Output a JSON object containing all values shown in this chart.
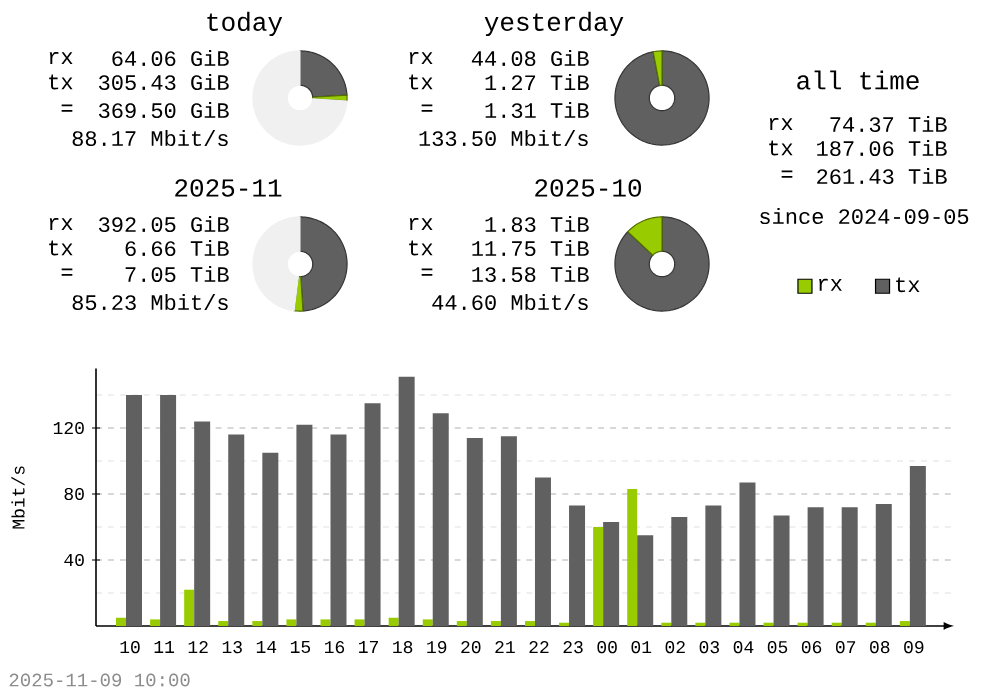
{
  "chart_data": [
    {
      "type": "donut",
      "title": "today",
      "categories": [
        null,
        null,
        null
      ],
      "values": [
        24,
        2,
        74
      ],
      "colors": [
        "#606060",
        "#99cc00",
        "#f0f0f0"
      ],
      "annotations": [
        "rx",
        "64.06 GiB",
        "tx",
        "305.43 GiB",
        "=",
        "369.50 GiB",
        "88.17 Mbit/s"
      ]
    },
    {
      "type": "donut",
      "title": "yesterday",
      "categories": [
        null,
        null,
        null
      ],
      "values": [
        97,
        3,
        0
      ],
      "colors": [
        "#606060",
        "#99cc00",
        "#f0f0f0"
      ],
      "annotations": [
        "rx",
        "44.08 GiB",
        "tx",
        "1.27 TiB",
        "=",
        "1.31 TiB",
        "133.50 Mbit/s"
      ]
    },
    {
      "type": "donut",
      "title": "2025-11",
      "categories": [
        null,
        null,
        null
      ],
      "values": [
        49,
        3,
        48
      ],
      "colors": [
        "#606060",
        "#99cc00",
        "#f0f0f0"
      ],
      "annotations": [
        "rx",
        "392.05 GiB",
        "tx",
        "6.66 TiB",
        "=",
        "7.05 TiB",
        "85.23 Mbit/s"
      ]
    },
    {
      "type": "donut",
      "title": "2025-10",
      "categories": [
        null,
        null,
        null
      ],
      "values": [
        87,
        13,
        0
      ],
      "colors": [
        "#606060",
        "#99cc00",
        "#f0f0f0"
      ],
      "annotations": [
        "rx",
        "1.83 TiB",
        "tx",
        "11.75 TiB",
        "=",
        "13.58 TiB",
        "44.60 Mbit/s"
      ]
    },
    {
      "type": "other",
      "title": "all time",
      "annotations": [
        "rx",
        "74.37 TiB",
        "tx",
        "187.06 TiB",
        "=",
        "261.43 TiB",
        "since 2024-09-05"
      ]
    },
    {
      "type": "bar",
      "ylabel": "Mbit/s",
      "categories": [
        "10",
        "11",
        "12",
        "13",
        "14",
        "15",
        "16",
        "17",
        "18",
        "19",
        "20",
        "21",
        "22",
        "23",
        "00",
        "01",
        "02",
        "03",
        "04",
        "05",
        "06",
        "07",
        "08",
        "09"
      ],
      "series": [
        {
          "name": "rx",
          "color": "#99cc00",
          "values": [
            5,
            4,
            22,
            3,
            3,
            4,
            4,
            4,
            5,
            4,
            3,
            3,
            3,
            2,
            60,
            83,
            2,
            2,
            2,
            2,
            2,
            2,
            2,
            3
          ]
        },
        {
          "name": "tx",
          "color": "#606060",
          "values": [
            140,
            140,
            124,
            116,
            105,
            122,
            116,
            135,
            151,
            129,
            114,
            115,
            90,
            73,
            63,
            55,
            66,
            73,
            87,
            67,
            72,
            72,
            74,
            97
          ]
        }
      ],
      "ylim": [
        0,
        156
      ],
      "yticks": [
        {
          "value": 20,
          "label": null
        },
        40,
        {
          "value": 60,
          "label": null
        },
        80,
        {
          "value": 100,
          "label": null
        },
        120,
        {
          "value": 140,
          "label": null
        }
      ],
      "grid": "y",
      "legend": "top right",
      "annotations": [
        "2025-11-09 10:00"
      ]
    }
  ]
}
